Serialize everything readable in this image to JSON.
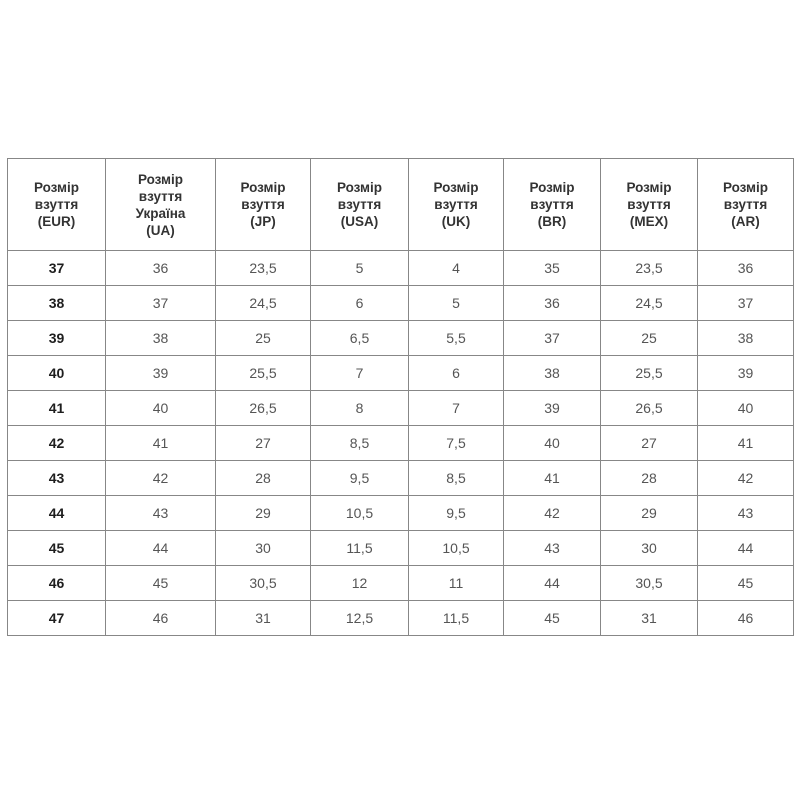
{
  "colors": {
    "background": "#ffffff",
    "table_border": "#878787",
    "header_text": "#333333",
    "cell_text": "#555555",
    "eur_column_text": "#1e1e1e"
  },
  "chart_data": {
    "type": "table",
    "title": "",
    "columns": [
      "Розмір\nвзуття\n(EUR)",
      "Розмір\nвзуття\nУкраїна\n(UA)",
      "Розмір\nвзуття\n(JP)",
      "Розмір\nвзуття\n(USA)",
      "Розмір\nвзуття\n(UK)",
      "Розмір\nвзуття\n(BR)",
      "Розмір\nвзуття\n(MEX)",
      "Розмір\nвзуття\n(AR)"
    ],
    "rows": [
      [
        "37",
        "36",
        "23,5",
        "5",
        "4",
        "35",
        "23,5",
        "36"
      ],
      [
        "38",
        "37",
        "24,5",
        "6",
        "5",
        "36",
        "24,5",
        "37"
      ],
      [
        "39",
        "38",
        "25",
        "6,5",
        "5,5",
        "37",
        "25",
        "38"
      ],
      [
        "40",
        "39",
        "25,5",
        "7",
        "6",
        "38",
        "25,5",
        "39"
      ],
      [
        "41",
        "40",
        "26,5",
        "8",
        "7",
        "39",
        "26,5",
        "40"
      ],
      [
        "42",
        "41",
        "27",
        "8,5",
        "7,5",
        "40",
        "27",
        "41"
      ],
      [
        "43",
        "42",
        "28",
        "9,5",
        "8,5",
        "41",
        "28",
        "42"
      ],
      [
        "44",
        "43",
        "29",
        "10,5",
        "9,5",
        "42",
        "29",
        "43"
      ],
      [
        "45",
        "44",
        "30",
        "11,5",
        "10,5",
        "43",
        "30",
        "44"
      ],
      [
        "46",
        "45",
        "30,5",
        "12",
        "11",
        "44",
        "30,5",
        "45"
      ],
      [
        "47",
        "46",
        "31",
        "12,5",
        "11,5",
        "45",
        "31",
        "46"
      ]
    ]
  }
}
